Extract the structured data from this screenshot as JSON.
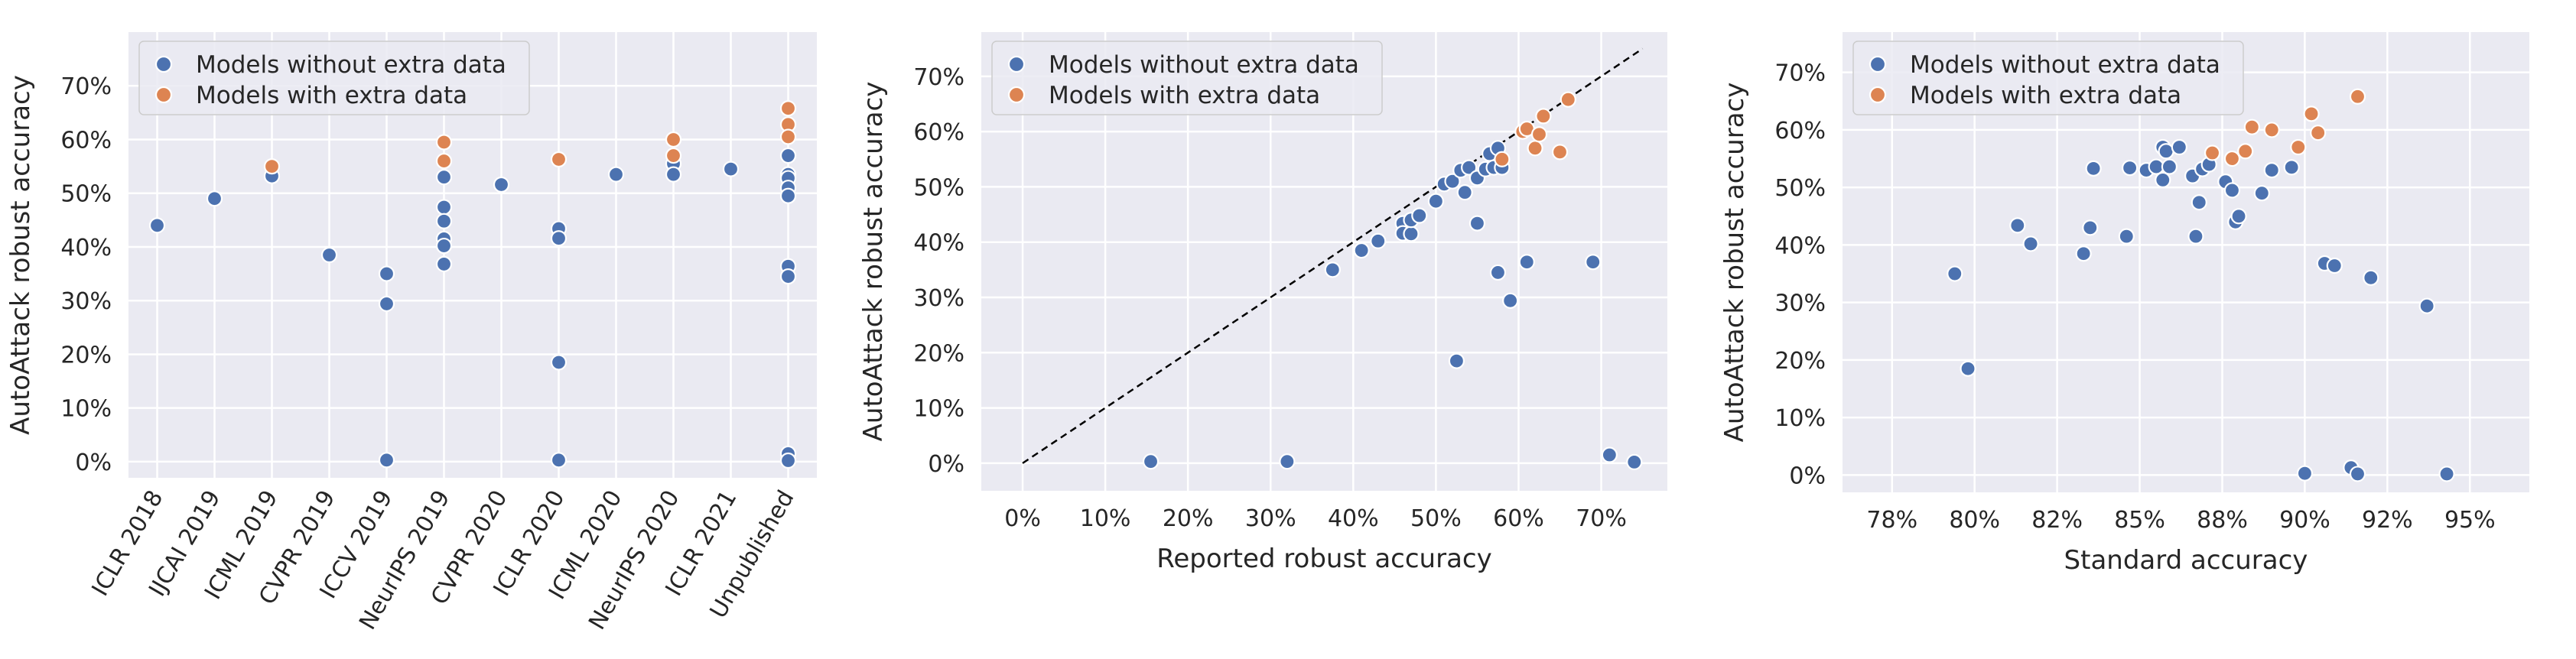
{
  "colors": {
    "without": "#4c72b0",
    "with": "#dd8452"
  },
  "legend": {
    "without": "Models without extra data",
    "with": "Models with extra data"
  },
  "chart_data": [
    {
      "type": "scatter",
      "id": "venue",
      "xlabel": "",
      "ylabel": "AutoAttack robust accuracy",
      "ylim": [
        -3,
        80
      ],
      "yticks": [
        0,
        10,
        20,
        30,
        40,
        50,
        60,
        70
      ],
      "ytick_labels": [
        "0%",
        "10%",
        "20%",
        "30%",
        "40%",
        "50%",
        "60%",
        "70%"
      ],
      "categories": [
        "ICLR 2018",
        "IJCAI 2019",
        "ICML 2019",
        "CVPR 2019",
        "ICCV 2019",
        "NeurIPS 2019",
        "CVPR 2020",
        "ICLR 2020",
        "ICML 2020",
        "NeurIPS 2020",
        "ICLR 2021",
        "Unpublished"
      ],
      "legend_position": "top-left",
      "series": [
        {
          "name": "Models without extra data",
          "key": "without",
          "points": [
            [
              "ICLR 2018",
              44.0
            ],
            [
              "IJCAI 2019",
              49.0
            ],
            [
              "ICML 2019",
              53.2
            ],
            [
              "CVPR 2019",
              38.5
            ],
            [
              "ICCV 2019",
              35.0
            ],
            [
              "ICCV 2019",
              29.4
            ],
            [
              "ICCV 2019",
              0.3
            ],
            [
              "NeurIPS 2019",
              53.0
            ],
            [
              "NeurIPS 2019",
              47.4
            ],
            [
              "NeurIPS 2019",
              44.8
            ],
            [
              "NeurIPS 2019",
              41.5
            ],
            [
              "NeurIPS 2019",
              40.2
            ],
            [
              "NeurIPS 2019",
              36.8
            ],
            [
              "CVPR 2020",
              51.6
            ],
            [
              "ICLR 2020",
              43.4
            ],
            [
              "ICLR 2020",
              41.6
            ],
            [
              "ICLR 2020",
              18.5
            ],
            [
              "ICLR 2020",
              0.3
            ],
            [
              "ICML 2020",
              53.5
            ],
            [
              "NeurIPS 2020",
              55.5
            ],
            [
              "NeurIPS 2020",
              53.5
            ],
            [
              "ICLR 2021",
              54.5
            ],
            [
              "Unpublished",
              57.0
            ],
            [
              "Unpublished",
              53.5
            ],
            [
              "Unpublished",
              52.8
            ],
            [
              "Unpublished",
              51.0
            ],
            [
              "Unpublished",
              49.5
            ],
            [
              "Unpublished",
              36.4
            ],
            [
              "Unpublished",
              34.5
            ],
            [
              "Unpublished",
              1.5
            ],
            [
              "Unpublished",
              0.2
            ]
          ]
        },
        {
          "name": "Models with extra data",
          "key": "with",
          "points": [
            [
              "ICML 2019",
              55.0
            ],
            [
              "NeurIPS 2019",
              59.5
            ],
            [
              "NeurIPS 2019",
              56.0
            ],
            [
              "ICLR 2020",
              56.3
            ],
            [
              "NeurIPS 2020",
              60.0
            ],
            [
              "NeurIPS 2020",
              57.0
            ],
            [
              "Unpublished",
              65.8
            ],
            [
              "Unpublished",
              62.8
            ],
            [
              "Unpublished",
              60.5
            ]
          ]
        }
      ]
    },
    {
      "type": "scatter",
      "id": "reported",
      "xlabel": "Reported robust accuracy",
      "ylabel": "AutoAttack robust accuracy",
      "xlim": [
        -5,
        78
      ],
      "ylim": [
        -5,
        78
      ],
      "xticks": [
        0,
        10,
        20,
        30,
        40,
        50,
        60,
        70
      ],
      "xtick_labels": [
        "0%",
        "10%",
        "20%",
        "30%",
        "40%",
        "50%",
        "60%",
        "70%"
      ],
      "yticks": [
        0,
        10,
        20,
        30,
        40,
        50,
        60,
        70
      ],
      "ytick_labels": [
        "0%",
        "10%",
        "20%",
        "30%",
        "40%",
        "50%",
        "60%",
        "70%"
      ],
      "reference_line": [
        [
          0,
          0
        ],
        [
          75,
          75
        ]
      ],
      "legend_position": "top-left",
      "series": [
        {
          "name": "Models without extra data",
          "key": "without",
          "points": [
            [
              15.5,
              0.3
            ],
            [
              32.0,
              0.3
            ],
            [
              37.5,
              35.0
            ],
            [
              41.0,
              38.5
            ],
            [
              43.0,
              40.2
            ],
            [
              46.0,
              43.4
            ],
            [
              46.0,
              41.6
            ],
            [
              47.0,
              41.5
            ],
            [
              47.0,
              44.0
            ],
            [
              48.0,
              44.8
            ],
            [
              50.0,
              47.4
            ],
            [
              51.0,
              50.5
            ],
            [
              52.0,
              51.0
            ],
            [
              52.5,
              18.5
            ],
            [
              53.0,
              53.0
            ],
            [
              53.5,
              49.0
            ],
            [
              54.0,
              53.5
            ],
            [
              55.0,
              51.6
            ],
            [
              55.0,
              43.4
            ],
            [
              56.0,
              53.2
            ],
            [
              56.5,
              56.0
            ],
            [
              57.0,
              53.5
            ],
            [
              57.5,
              57.0
            ],
            [
              57.5,
              34.5
            ],
            [
              58.0,
              53.5
            ],
            [
              59.0,
              29.4
            ],
            [
              61.0,
              36.4
            ],
            [
              69.0,
              36.4
            ],
            [
              71.0,
              1.5
            ],
            [
              74.0,
              0.2
            ]
          ]
        },
        {
          "name": "Models with extra data",
          "key": "with",
          "points": [
            [
              58.0,
              55.0
            ],
            [
              60.5,
              60.0
            ],
            [
              61.0,
              60.5
            ],
            [
              62.0,
              57.0
            ],
            [
              62.5,
              59.5
            ],
            [
              63.0,
              62.8
            ],
            [
              65.0,
              56.3
            ],
            [
              66.0,
              65.8
            ]
          ]
        }
      ]
    },
    {
      "type": "scatter",
      "id": "standard",
      "xlabel": "Standard accuracy",
      "ylabel": "AutoAttack robust accuracy",
      "xlim": [
        76.0,
        96.8
      ],
      "ylim": [
        -3,
        77
      ],
      "xticks": [
        77.5,
        80,
        82.5,
        85,
        87.5,
        90,
        92.5,
        95
      ],
      "xtick_labels": [
        "78%",
        "80%",
        "82%",
        "85%",
        "88%",
        "90%",
        "92%",
        "95%"
      ],
      "yticks": [
        0,
        10,
        20,
        30,
        40,
        50,
        60,
        70
      ],
      "ytick_labels": [
        "0%",
        "10%",
        "20%",
        "30%",
        "40%",
        "50%",
        "60%",
        "70%"
      ],
      "legend_position": "top-left",
      "series": [
        {
          "name": "Models without extra data",
          "key": "without",
          "points": [
            [
              79.4,
              35.0
            ],
            [
              79.8,
              18.5
            ],
            [
              81.3,
              43.4
            ],
            [
              81.7,
              40.2
            ],
            [
              83.3,
              38.5
            ],
            [
              83.5,
              43.0
            ],
            [
              83.6,
              53.3
            ],
            [
              84.6,
              41.5
            ],
            [
              84.7,
              53.4
            ],
            [
              85.2,
              53.0
            ],
            [
              85.5,
              53.6
            ],
            [
              85.7,
              57.0
            ],
            [
              85.8,
              56.3
            ],
            [
              85.7,
              51.3
            ],
            [
              85.9,
              53.6
            ],
            [
              86.2,
              57.0
            ],
            [
              86.6,
              52.0
            ],
            [
              86.7,
              41.5
            ],
            [
              86.8,
              47.4
            ],
            [
              86.9,
              53.2
            ],
            [
              87.1,
              54.0
            ],
            [
              87.6,
              51.0
            ],
            [
              87.8,
              49.5
            ],
            [
              87.9,
              44.0
            ],
            [
              88.0,
              45.0
            ],
            [
              88.7,
              49.0
            ],
            [
              89.0,
              53.0
            ],
            [
              89.6,
              53.5
            ],
            [
              90.0,
              0.3
            ],
            [
              90.6,
              36.8
            ],
            [
              90.9,
              36.4
            ],
            [
              91.4,
              1.3
            ],
            [
              91.6,
              0.2
            ],
            [
              92.0,
              34.3
            ],
            [
              93.7,
              29.4
            ],
            [
              94.3,
              0.2
            ]
          ]
        },
        {
          "name": "Models with extra data",
          "key": "with",
          "points": [
            [
              87.2,
              56.0
            ],
            [
              87.8,
              55.0
            ],
            [
              88.2,
              56.3
            ],
            [
              88.4,
              60.5
            ],
            [
              89.0,
              60.0
            ],
            [
              89.8,
              57.0
            ],
            [
              90.2,
              62.8
            ],
            [
              90.4,
              59.5
            ],
            [
              91.6,
              65.8
            ]
          ]
        }
      ]
    }
  ]
}
